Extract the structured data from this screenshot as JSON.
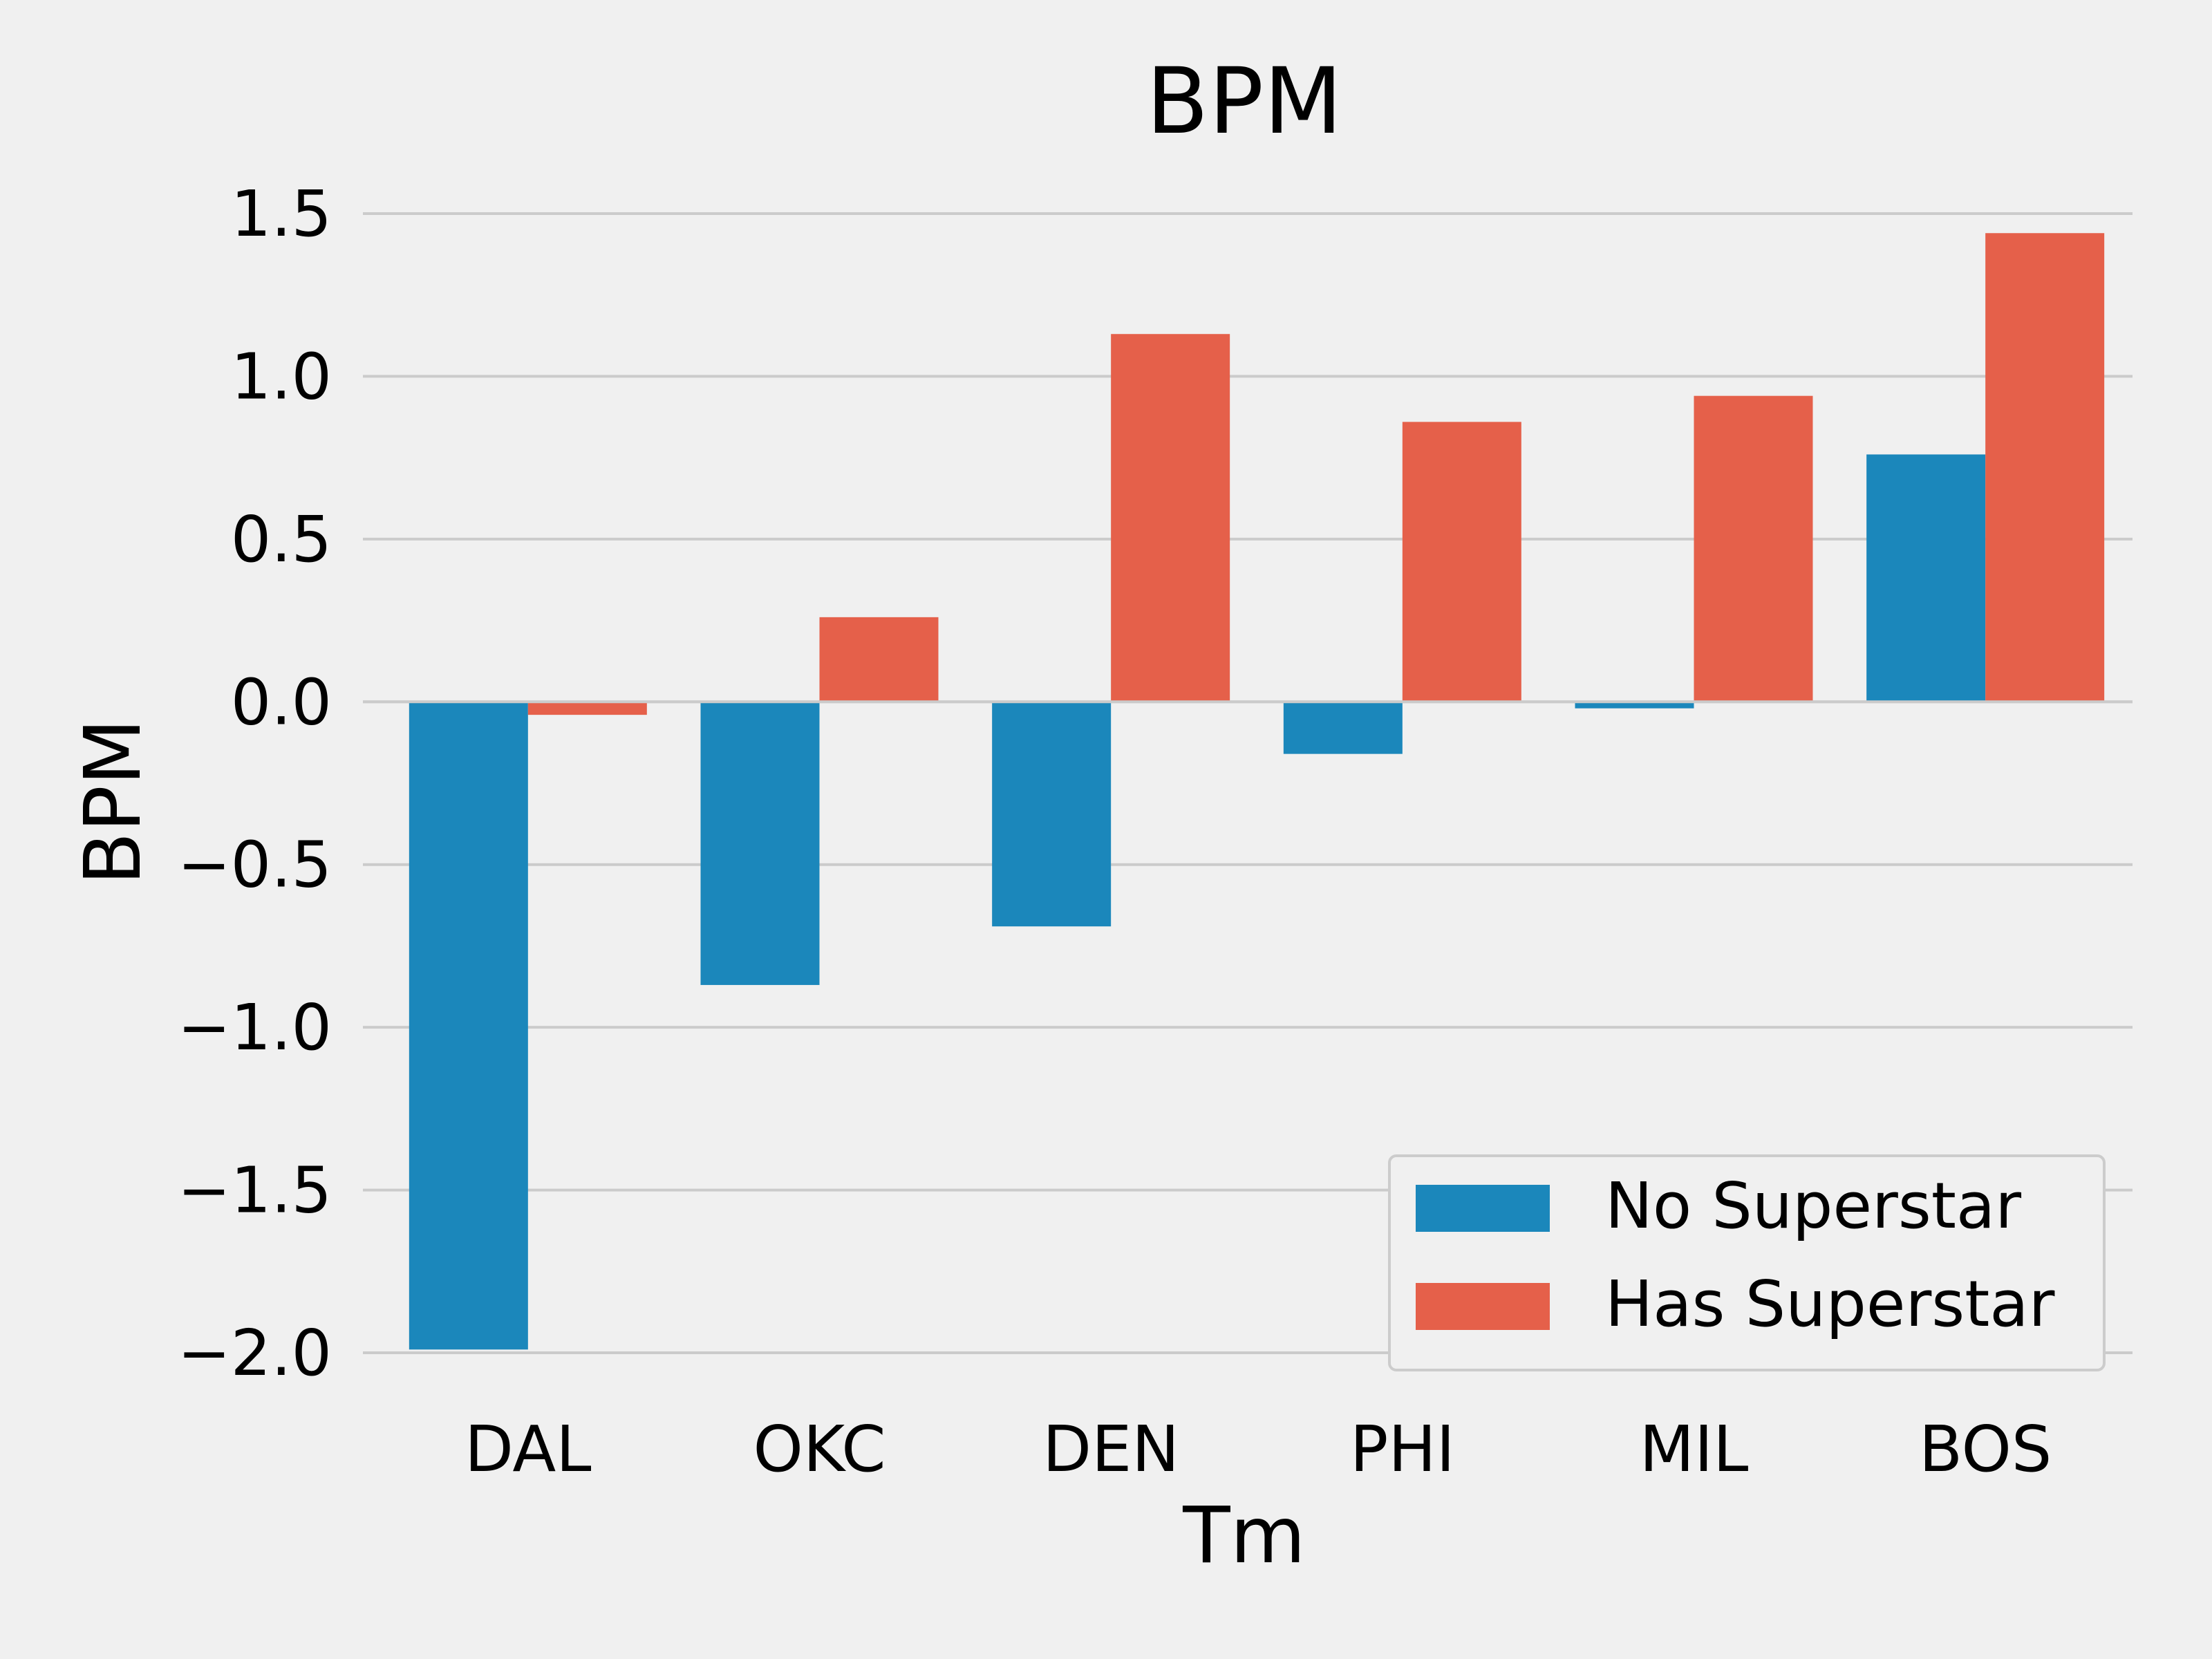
{
  "colors": {
    "background": "#f0f0f0",
    "grid": "#cbcbcb",
    "no_superstar": "#1b87bb",
    "has_superstar": "#e5604a",
    "legend_border": "#cccccc"
  },
  "chart_data": {
    "type": "bar",
    "title": "BPM",
    "xlabel": "Tm",
    "ylabel": "BPM",
    "categories": [
      "DAL",
      "OKC",
      "DEN",
      "PHI",
      "MIL",
      "BOS"
    ],
    "ylim": [
      -2.0,
      1.5
    ],
    "yticks": [
      -2.0,
      -1.5,
      -1.0,
      -0.5,
      0.0,
      0.5,
      1.0,
      1.5
    ],
    "ytick_labels": [
      "−2.0",
      "−1.5",
      "−1.0",
      "−0.5",
      "0.0",
      "0.5",
      "1.0",
      "1.5"
    ],
    "grid": true,
    "legend_position": "bottom-right",
    "series": [
      {
        "name": "No Superstar",
        "color": "#1b87bb",
        "values": [
          -1.99,
          -0.87,
          -0.69,
          -0.16,
          -0.02,
          0.76
        ]
      },
      {
        "name": "Has Superstar",
        "color": "#e5604a",
        "values": [
          -0.04,
          0.26,
          1.13,
          0.86,
          0.94,
          1.44
        ]
      }
    ]
  }
}
